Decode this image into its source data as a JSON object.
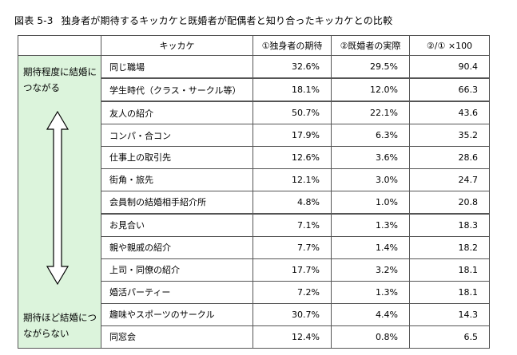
{
  "figure": {
    "number": "図表 5-3",
    "title": "独身者が期待するキッカケと既婚者が配偶者と知り合ったキッカケとの比較"
  },
  "table": {
    "headers": {
      "label": "キッカケ",
      "single_expect": "①独身者の期待",
      "married_actual": "②既婚者の実際",
      "ratio": "②/① ×100"
    },
    "side": {
      "top_text": "期待程度に結婚につながる",
      "bottom_text": "期待ほど結婚につながらない",
      "arrow_color": "#ffffff"
    },
    "rows": [
      {
        "label": "同じ職場",
        "single": "32.6%",
        "married": "29.5%",
        "ratio": "90.4"
      },
      {
        "label": "学生時代（クラス・サークル等）",
        "single": "18.1%",
        "married": "12.0%",
        "ratio": "66.3"
      },
      {
        "label": "友人の紹介",
        "single": "50.7%",
        "married": "22.1%",
        "ratio": "43.6"
      },
      {
        "label": "コンパ・合コン",
        "single": "17.9%",
        "married": "6.3%",
        "ratio": "35.2"
      },
      {
        "label": "仕事上の取引先",
        "single": "12.6%",
        "married": "3.6%",
        "ratio": "28.6"
      },
      {
        "label": "街角・旅先",
        "single": "12.1%",
        "married": "3.0%",
        "ratio": "24.7"
      },
      {
        "label": "会員制の結婚相手紹介所",
        "single": "4.8%",
        "married": "1.0%",
        "ratio": "20.8"
      },
      {
        "label": "お見合い",
        "single": "7.1%",
        "married": "1.3%",
        "ratio": "18.3"
      },
      {
        "label": "親や親戚の紹介",
        "single": "7.7%",
        "married": "1.4%",
        "ratio": "18.2"
      },
      {
        "label": "上司・同僚の紹介",
        "single": "17.7%",
        "married": "3.2%",
        "ratio": "18.1"
      },
      {
        "label": "婚活パーティー",
        "single": "7.2%",
        "married": "1.3%",
        "ratio": "18.1"
      },
      {
        "label": "趣味やスポーツのサークル",
        "single": "30.7%",
        "married": "4.4%",
        "ratio": "14.3"
      },
      {
        "label": "同窓会",
        "single": "12.4%",
        "married": "0.8%",
        "ratio": "6.5"
      }
    ]
  }
}
